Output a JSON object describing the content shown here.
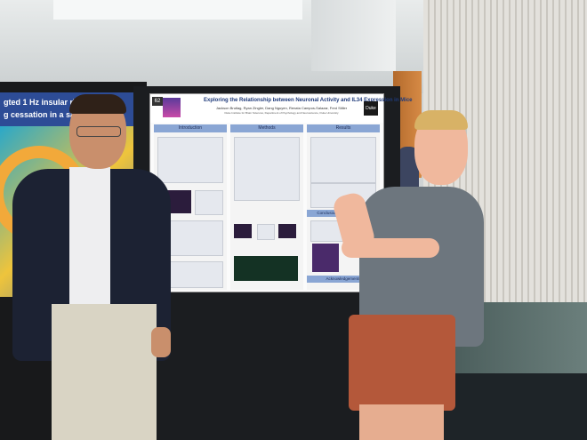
{
  "left_poster": {
    "line1": "gted 1 Hz insular rTMS ta",
    "line2": "g cessation in a sample of"
  },
  "poster": {
    "number": "62",
    "title": "Exploring the Relationship between Neuronal Activity and IL34 Expression in Mice",
    "authors": "Jackson Brutlag, Ryan Zingler, Dang Nguyen, Renata Campos-Salazar, Fred Stiller",
    "affiliation": "Duke Institute for Brain Sciences, Department of Psychology and Neuroscience, Duke University",
    "logo": "Duke",
    "sections": {
      "introduction": "Introduction",
      "methods": "Methods",
      "results": "Results",
      "conclusions": "Conclusions & Future Studies",
      "acknowledgements": "Acknowledgements"
    }
  }
}
